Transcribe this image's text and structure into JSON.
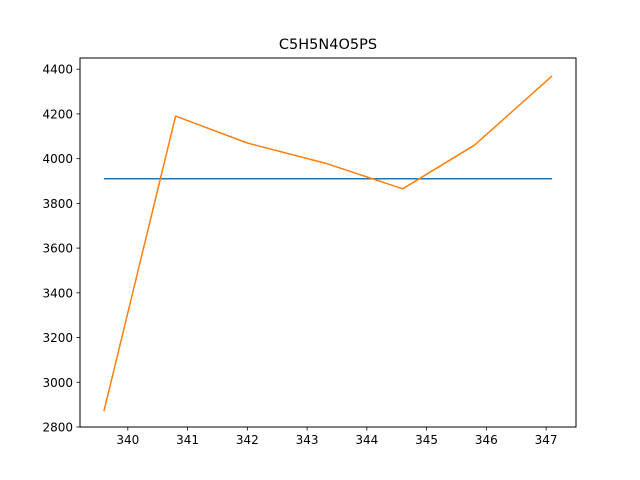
{
  "chart_data": {
    "type": "line",
    "title": "C5H5N4O5PS",
    "xlabel": "",
    "ylabel": "",
    "xlim": [
      339.2,
      347.5
    ],
    "ylim": [
      2800,
      4450
    ],
    "xticks": [
      340,
      341,
      342,
      343,
      344,
      345,
      346,
      347
    ],
    "yticks": [
      2800,
      3000,
      3200,
      3400,
      3600,
      3800,
      4000,
      4200,
      4400
    ],
    "grid": false,
    "legend": "none",
    "series": [
      {
        "color": "#1f77b4",
        "x": [
          339.6,
          347.1
        ],
        "y": [
          3910,
          3910
        ]
      },
      {
        "color": "#ff7f0e",
        "x": [
          339.6,
          340.8,
          342.0,
          343.3,
          344.6,
          345.8,
          347.1
        ],
        "y": [
          2870,
          4190,
          4070,
          3980,
          3865,
          4060,
          4370
        ]
      }
    ]
  }
}
